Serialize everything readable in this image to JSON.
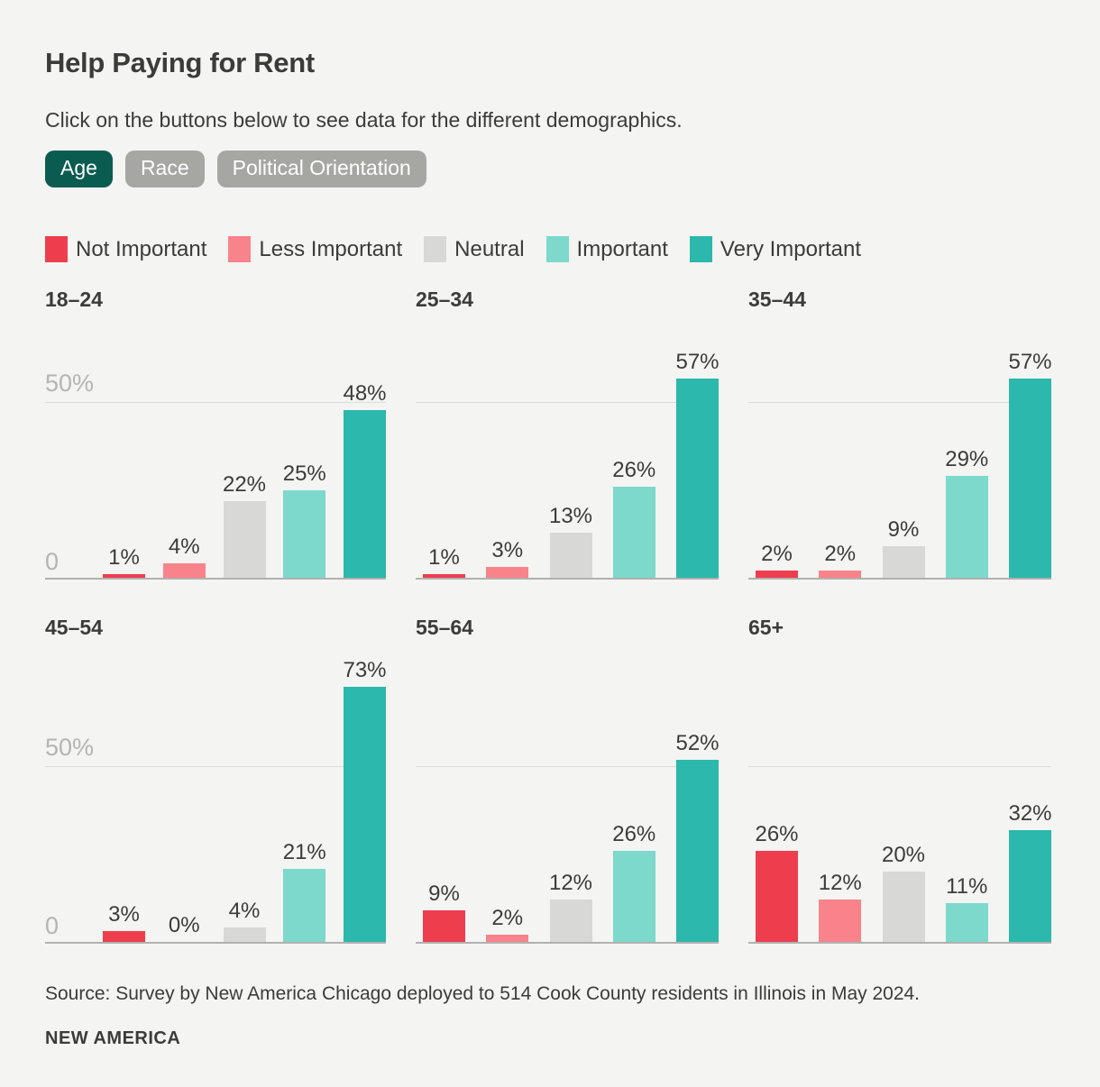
{
  "page": {
    "title": "Help Paying for Rent",
    "subtitle": "Click on the buttons below to see data for the different demographics.",
    "source": "Source: Survey by New America Chicago deployed to 514 Cook County residents in Illinois in May 2024.",
    "brand": "NEW AMERICA"
  },
  "buttons": [
    {
      "label": "Age",
      "active": true
    },
    {
      "label": "Race",
      "active": false
    },
    {
      "label": "Political Orientation",
      "active": false
    }
  ],
  "colors": {
    "background": "#f4f4f2",
    "text": "#3b3b3b",
    "button_active": "#0b5c50",
    "button_inactive": "#a6a6a3",
    "axis_label": "#b4b4b2",
    "gridline": "#dcdcda",
    "baseline": "#b1b1af"
  },
  "legend": [
    {
      "label": "Not Important",
      "color": "#ee3e4e"
    },
    {
      "label": "Less Important",
      "color": "#f9838b"
    },
    {
      "label": "Neutral",
      "color": "#d8d8d6"
    },
    {
      "label": "Important",
      "color": "#7cd9cc"
    },
    {
      "label": "Very Important",
      "color": "#2cb8ac"
    }
  ],
  "chart_data": {
    "type": "bar",
    "title": "Help Paying for Rent",
    "categories": [
      "Not Important",
      "Less Important",
      "Neutral",
      "Important",
      "Very Important"
    ],
    "series_colors": [
      "#ee3e4e",
      "#f9838b",
      "#d8d8d6",
      "#7cd9cc",
      "#2cb8ac"
    ],
    "value_suffix": "%",
    "ylabel": "",
    "xlabel": "",
    "y_axis_ticks": [
      "0",
      "50%"
    ],
    "gridline_value": 50,
    "ylim": [
      0,
      75
    ],
    "legend_position": "top",
    "groups": [
      {
        "label": "18–24",
        "values": [
          1,
          4,
          22,
          25,
          48
        ]
      },
      {
        "label": "25–34",
        "values": [
          1,
          3,
          13,
          26,
          57
        ]
      },
      {
        "label": "35–44",
        "values": [
          2,
          2,
          9,
          29,
          57
        ]
      },
      {
        "label": "45–54",
        "values": [
          3,
          0,
          4,
          21,
          73
        ]
      },
      {
        "label": "55–64",
        "values": [
          9,
          2,
          12,
          26,
          52
        ]
      },
      {
        "label": "65+",
        "values": [
          26,
          12,
          20,
          11,
          32
        ]
      }
    ]
  }
}
